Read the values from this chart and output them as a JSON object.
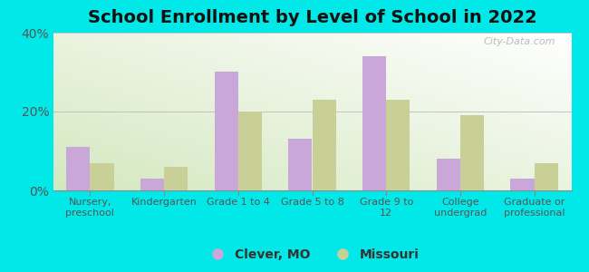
{
  "title": "School Enrollment by Level of School in 2022",
  "categories": [
    "Nursery,\npreschool",
    "Kindergarten",
    "Grade 1 to 4",
    "Grade 5 to 8",
    "Grade 9 to\n12",
    "College\nundergrad",
    "Graduate or\nprofessional"
  ],
  "clever_mo": [
    11,
    3,
    30,
    13,
    34,
    8,
    3
  ],
  "missouri": [
    7,
    6,
    20,
    23,
    23,
    19,
    7
  ],
  "clever_color": "#c9a8d9",
  "missouri_color": "#c8d098",
  "ylim": [
    0,
    40
  ],
  "yticks": [
    0,
    20,
    40
  ],
  "ytick_labels": [
    "0%",
    "20%",
    "40%"
  ],
  "legend_labels": [
    "Clever, MO",
    "Missouri"
  ],
  "background_color": "#00e8e8",
  "bar_width": 0.32,
  "title_fontsize": 14,
  "watermark": "City-Data.com"
}
